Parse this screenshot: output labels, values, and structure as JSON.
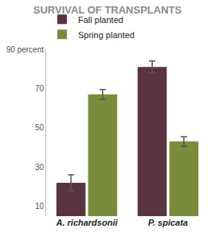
{
  "chart_data": {
    "type": "bar",
    "title": "SURVIVAL OF TRANSPLANTS",
    "categories": [
      "A. richardsonii",
      "P. spicata"
    ],
    "series": [
      {
        "name": "Fall planted",
        "color": "#5a3341",
        "values": [
          22,
          81
        ],
        "errors": [
          4,
          3
        ]
      },
      {
        "name": "Spring planted",
        "color": "#7a8c3c",
        "values": [
          67,
          43
        ],
        "errors": [
          2.5,
          2.5
        ]
      }
    ],
    "ylim": [
      5,
      90
    ],
    "yticks": [
      10,
      30,
      50,
      70,
      {
        "value": 90,
        "label": "90 percent"
      }
    ],
    "grid": false,
    "legend": "top"
  }
}
